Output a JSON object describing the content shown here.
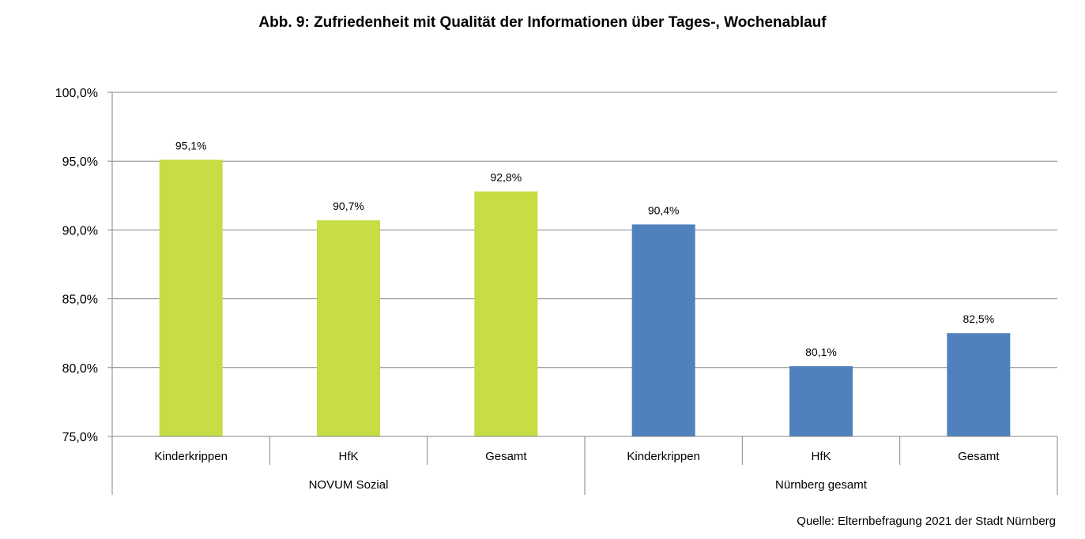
{
  "chart_data": {
    "type": "bar",
    "title": "Abb. 9: Zufriedenheit mit Qualität der Informationen über Tages-, Wochenablauf",
    "xlabel": "",
    "ylabel": "",
    "ylim": [
      75,
      100
    ],
    "y_ticks": [
      "75,0%",
      "80,0%",
      "85,0%",
      "90,0%",
      "95,0%",
      "100,0%"
    ],
    "grid": true,
    "groups": [
      {
        "name": "NOVUM Sozial",
        "color": "#c8dc43",
        "categories": [
          "Kinderkrippen",
          "HfK",
          "Gesamt"
        ],
        "values": [
          95.1,
          90.7,
          92.8
        ],
        "labels": [
          "95,1%",
          "90,7%",
          "92,8%"
        ]
      },
      {
        "name": "Nürnberg gesamt",
        "color": "#4f81bd",
        "categories": [
          "Kinderkrippen",
          "HfK",
          "Gesamt"
        ],
        "values": [
          90.4,
          80.1,
          82.5
        ],
        "labels": [
          "90,4%",
          "80,1%",
          "82,5%"
        ]
      }
    ]
  },
  "source": "Quelle: Elternbefragung 2021 der Stadt Nürnberg"
}
